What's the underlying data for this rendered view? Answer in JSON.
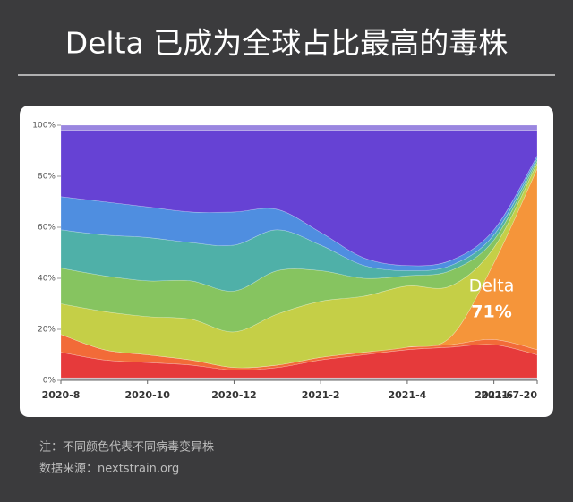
{
  "chart_data": {
    "type": "stacked-area",
    "title": "Delta 已成为全球占比最高的毒株",
    "categories": [
      "2020-8",
      null,
      "2020-10",
      null,
      "2020-12",
      null,
      "2021-2",
      null,
      "2021-4",
      null,
      "2021-6",
      "2021-7-20"
    ],
    "ylim": [
      0,
      100
    ],
    "yticks": [
      {
        "value": 0,
        "label": "0%"
      },
      {
        "value": 20,
        "label": "20%"
      },
      {
        "value": 40,
        "label": "40%"
      },
      {
        "value": 60,
        "label": "60%"
      },
      {
        "value": 80,
        "label": "80%"
      },
      {
        "value": 100,
        "label": "100%"
      }
    ],
    "series": [
      {
        "color": "#b9b9c2",
        "values": [
          1,
          1,
          1,
          1,
          1,
          1,
          1,
          1,
          1,
          1,
          1,
          1
        ]
      },
      {
        "color": "#e63a3b",
        "values": [
          10,
          7,
          6,
          5,
          3,
          4,
          7,
          9,
          11,
          12,
          13,
          9
        ]
      },
      {
        "color": "#f26b38",
        "values": [
          7,
          4,
          3,
          2,
          1,
          1,
          1,
          1,
          1,
          1,
          2,
          2
        ]
      },
      {
        "name": "Delta",
        "color": "#f5953a",
        "values": [
          0,
          0,
          0,
          0,
          0,
          0,
          0,
          0,
          0,
          3,
          30,
          71
        ],
        "value_labels": [
          null,
          null,
          null,
          null,
          null,
          null,
          null,
          null,
          null,
          null,
          null,
          "71%"
        ]
      },
      {
        "color": "#c5cf47",
        "values": [
          12,
          15,
          15,
          16,
          14,
          20,
          22,
          22,
          24,
          20,
          6,
          2
        ]
      },
      {
        "color": "#86c460",
        "values": [
          14,
          14,
          14,
          15,
          16,
          17,
          12,
          7,
          4,
          6,
          3,
          1
        ]
      },
      {
        "color": "#4fb0a8",
        "values": [
          15,
          16,
          17,
          15,
          18,
          16,
          10,
          5,
          2,
          2,
          2,
          1
        ]
      },
      {
        "color": "#4f8ee0",
        "values": [
          13,
          13,
          12,
          12,
          13,
          8,
          5,
          3,
          2,
          2,
          2,
          1
        ]
      },
      {
        "color": "#6642d4",
        "values": [
          26,
          28,
          30,
          32,
          32,
          31,
          40,
          50,
          53,
          51,
          39,
          10
        ]
      },
      {
        "color": "#9a86e0",
        "values": [
          2,
          2,
          2,
          2,
          2,
          2,
          2,
          2,
          2,
          2,
          2,
          2
        ]
      }
    ]
  },
  "notes": [
    "注：不同颜色代表不同病毒变异株",
    "数据来源：nextstrain.org"
  ]
}
